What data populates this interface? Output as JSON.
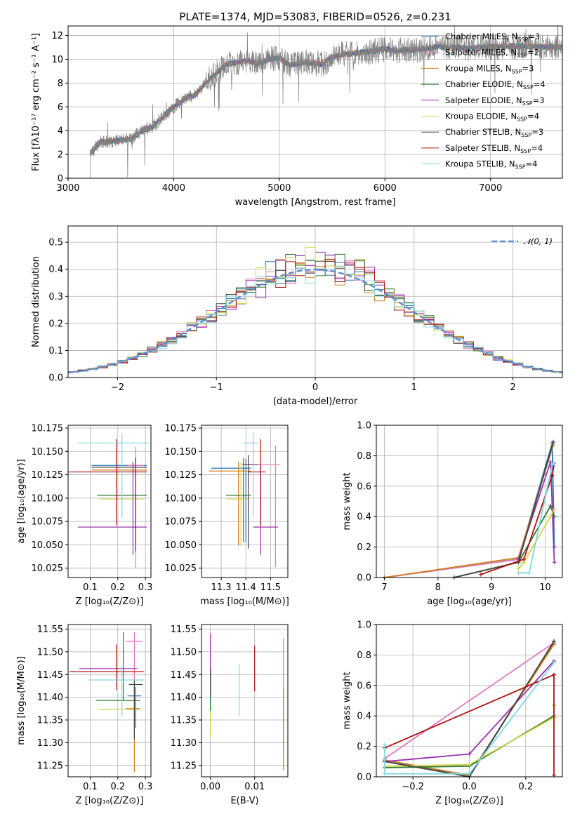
{
  "figure": {
    "title": "PLATE=1374, MJD=53083, FIBERID=0526, z=0.231"
  },
  "chart_data": [
    {
      "id": "spectrum",
      "type": "line",
      "xlabel": "wavelength [Angstrom, rest frame]",
      "ylabel": "Flux [fλ10⁻¹⁷ erg cm⁻² s⁻¹ A⁻¹]",
      "xlim": [
        3000,
        7680
      ],
      "ylim": [
        0,
        12.8
      ],
      "xticks": [
        3000,
        4000,
        5000,
        6000,
        7000
      ],
      "yticks": [
        0,
        2,
        4,
        6,
        8,
        10,
        12
      ],
      "x_start": 3210,
      "x_end": 7680,
      "data_color": "#808080",
      "continuum": [
        [
          3210,
          2.1
        ],
        [
          3300,
          3.0
        ],
        [
          3400,
          3.1
        ],
        [
          3500,
          3.2
        ],
        [
          3600,
          3.3
        ],
        [
          3700,
          4.0
        ],
        [
          3800,
          4.3
        ],
        [
          3900,
          5.2
        ],
        [
          4000,
          6.0
        ],
        [
          4100,
          6.7
        ],
        [
          4200,
          7.0
        ],
        [
          4300,
          8.0
        ],
        [
          4400,
          8.8
        ],
        [
          4500,
          9.6
        ],
        [
          4600,
          9.7
        ],
        [
          4700,
          9.9
        ],
        [
          4800,
          9.6
        ],
        [
          4900,
          10.0
        ],
        [
          5000,
          10.1
        ],
        [
          5100,
          9.5
        ],
        [
          5200,
          9.7
        ],
        [
          5300,
          9.7
        ],
        [
          5400,
          9.6
        ],
        [
          5500,
          10.2
        ],
        [
          5600,
          10.4
        ],
        [
          5700,
          10.5
        ],
        [
          5800,
          10.6
        ],
        [
          5900,
          10.7
        ],
        [
          6000,
          10.9
        ],
        [
          6100,
          10.7
        ],
        [
          6200,
          10.8
        ],
        [
          6300,
          10.8
        ],
        [
          6400,
          10.9
        ],
        [
          6500,
          11.1
        ],
        [
          6600,
          11.0
        ],
        [
          6700,
          11.0
        ],
        [
          6800,
          10.9
        ],
        [
          6900,
          11.0
        ],
        [
          7000,
          11.0
        ],
        [
          7200,
          11.1
        ],
        [
          7400,
          11.1
        ],
        [
          7680,
          11.0
        ]
      ],
      "legend": [
        {
          "label": "Chabrier MILES, N",
          "sub": "SSP",
          "post": "=3",
          "color": "#1f77b4"
        },
        {
          "label": "Salpeter MILES, N",
          "sub": "SSP",
          "post": "=2",
          "color": "#e377c2"
        },
        {
          "label": "Kroupa MILES, N",
          "sub": "SSP",
          "post": "=3",
          "color": "#d08020"
        },
        {
          "label": "Chabrier ELODIE, N",
          "sub": "SSP",
          "post": "=4",
          "color": "#2c7a2c"
        },
        {
          "label": "Salpeter ELODIE, N",
          "sub": "SSP",
          "post": "=3",
          "color": "#9b30b0"
        },
        {
          "label": "Kroupa ELODIE, N",
          "sub": "SSP",
          "post": "=4",
          "color": "#d4d44a"
        },
        {
          "label": "Chabrier STELIB, N",
          "sub": "SSP",
          "post": "=3",
          "color": "#444444"
        },
        {
          "label": "Salpeter STELIB, N",
          "sub": "SSP",
          "post": "=4",
          "color": "#b01010"
        },
        {
          "label": "Kroupa STELIB, N",
          "sub": "SSP",
          "post": "=4",
          "color": "#80d8e0"
        }
      ]
    },
    {
      "id": "residuals",
      "type": "step",
      "xlabel": "(data-model)/error",
      "ylabel": "Normed distribution",
      "xlim": [
        -2.5,
        2.5
      ],
      "ylim": [
        0,
        0.56
      ],
      "xticks": [
        -2,
        -1,
        0,
        1,
        2
      ],
      "yticks": [
        0.0,
        0.1,
        0.2,
        0.3,
        0.4,
        0.5
      ],
      "bin_width": 0.1,
      "series_colors": [
        "#1f77b4",
        "#e377c2",
        "#d08020",
        "#2c7a2c",
        "#9b30b0",
        "#d4d44a",
        "#444444",
        "#b01010",
        "#80d8e0"
      ],
      "legend": {
        "label": "𝒩(0, 1)",
        "color": "#5b8dd6"
      }
    },
    {
      "id": "age_vs_Z",
      "type": "errorbar",
      "xlabel": "Z [log₁₀(Z/Z⊙)]",
      "ylabel": "age  [log₁₀(age/yr)]",
      "xlim": [
        0.02,
        0.32
      ],
      "ylim": [
        10.015,
        10.178
      ],
      "xticks": [
        0.1,
        0.2,
        0.3
      ],
      "yticks": [
        10.025,
        10.05,
        10.075,
        10.1,
        10.125,
        10.15,
        10.175
      ],
      "points": [
        {
          "x": 0.265,
          "y": 10.135,
          "xerr": [
            0.16,
            0.04
          ],
          "yerr": [
            0.09,
            0.01
          ],
          "color": "#1f77b4"
        },
        {
          "x": 0.265,
          "y": 10.135,
          "xerr": [
            0.03,
            0.03
          ],
          "yerr": [
            0.11,
            0.02
          ],
          "color": "#e377c2"
        },
        {
          "x": 0.265,
          "y": 10.13,
          "xerr": [
            0.16,
            0.04
          ],
          "yerr": [
            0.08,
            0.01
          ],
          "color": "#d08020"
        },
        {
          "x": 0.265,
          "y": 10.103,
          "xerr": [
            0.14,
            0.04
          ],
          "yerr": [
            0.05,
            0.04
          ],
          "color": "#2c7a2c"
        },
        {
          "x": 0.255,
          "y": 10.069,
          "xerr": [
            0.2,
            0.05
          ],
          "yerr": [
            0.03,
            0.07
          ],
          "color": "#9b30b0"
        },
        {
          "x": 0.265,
          "y": 10.099,
          "xerr": [
            0.13,
            0.03
          ],
          "yerr": [
            0.05,
            0.04
          ],
          "color": "#d4d44a"
        },
        {
          "x": 0.265,
          "y": 10.133,
          "xerr": [
            0.16,
            0.04
          ],
          "yerr": [
            0.09,
            0.01
          ],
          "color": "#444444"
        },
        {
          "x": 0.195,
          "y": 10.128,
          "xerr": [
            0.18,
            0.11
          ],
          "yerr": [
            0.057,
            0.035
          ],
          "color": "#b01010"
        },
        {
          "x": 0.215,
          "y": 10.159,
          "xerr": [
            0.16,
            0.1
          ],
          "yerr": [
            0.08,
            0.01
          ],
          "color": "#80d8e0"
        }
      ]
    },
    {
      "id": "age_vs_mass",
      "type": "errorbar",
      "xlabel": "mass [log₁₀(M/M⊙)]",
      "ylabel": "",
      "xlim": [
        11.22,
        11.57
      ],
      "ylim": [
        10.015,
        10.178
      ],
      "xticks": [
        11.3,
        11.4,
        11.5
      ],
      "yticks": [
        10.025,
        10.05,
        10.075,
        10.1,
        10.125,
        10.15,
        10.175
      ],
      "points": [
        {
          "x": 11.4,
          "y": 10.132,
          "xerr": [
            0.14,
            0.02
          ],
          "yerr": [
            0.08,
            0.01
          ],
          "color": "#1f77b4"
        },
        {
          "x": 11.52,
          "y": 10.136,
          "xerr": [
            0.14,
            0.02
          ],
          "yerr": [
            0.11,
            0.02
          ],
          "color": "#e377c2"
        },
        {
          "x": 11.37,
          "y": 10.129,
          "xerr": [
            0.12,
            0.05
          ],
          "yerr": [
            0.08,
            0.01
          ],
          "color": "#d08020"
        },
        {
          "x": 11.39,
          "y": 10.103,
          "xerr": [
            0.07,
            0.03
          ],
          "yerr": [
            0.05,
            0.04
          ],
          "color": "#2c7a2c"
        },
        {
          "x": 11.46,
          "y": 10.069,
          "xerr": [
            0.03,
            0.07
          ],
          "yerr": [
            0.03,
            0.07
          ],
          "color": "#9b30b0"
        },
        {
          "x": 11.38,
          "y": 10.099,
          "xerr": [
            0.06,
            0.03
          ],
          "yerr": [
            0.05,
            0.04
          ],
          "color": "#d4d44a"
        },
        {
          "x": 11.41,
          "y": 10.136,
          "xerr": [
            0.02,
            0.04
          ],
          "yerr": [
            0.09,
            0.01
          ],
          "color": "#444444"
        },
        {
          "x": 11.46,
          "y": 10.128,
          "xerr": [
            0.05,
            0.02
          ],
          "yerr": [
            0.057,
            0.035
          ],
          "color": "#b01010"
        },
        {
          "x": 11.43,
          "y": 10.159,
          "xerr": [
            0.04,
            0.02
          ],
          "yerr": [
            0.08,
            0.01
          ],
          "color": "#80d8e0"
        }
      ]
    },
    {
      "id": "weight_vs_age",
      "type": "line",
      "xlabel": "age  [log₁₀(age/yr)]",
      "ylabel": "mass weight",
      "xlim": [
        6.85,
        10.32
      ],
      "ylim": [
        0,
        1.0
      ],
      "xticks": [
        7,
        8,
        9,
        10
      ],
      "yticks": [
        0.0,
        0.2,
        0.4,
        0.6,
        0.8,
        1.0
      ],
      "series": [
        {
          "color": "#1f77b4",
          "x": [
            7.0,
            9.5,
            10.13,
            10.17
          ],
          "y": [
            0.0,
            0.12,
            0.88,
            0.2
          ]
        },
        {
          "color": "#e377c2",
          "x": [
            7.0,
            9.5,
            10.15
          ],
          "y": [
            0.0,
            0.12,
            0.88
          ]
        },
        {
          "color": "#d08020",
          "x": [
            7.0,
            9.5,
            10.15
          ],
          "y": [
            0.0,
            0.13,
            0.87
          ]
        },
        {
          "color": "#2c7a2c",
          "x": [
            8.3,
            9.5,
            10.1,
            10.17
          ],
          "y": [
            0.0,
            0.1,
            0.47,
            0.4
          ]
        },
        {
          "color": "#9b30b0",
          "x": [
            9.5,
            10.1,
            10.17
          ],
          "y": [
            0.12,
            0.76,
            0.1
          ]
        },
        {
          "color": "#d4d44a",
          "x": [
            9.5,
            9.6,
            10.1,
            10.17
          ],
          "y": [
            0.06,
            0.1,
            0.4,
            0.45
          ]
        },
        {
          "color": "#444444",
          "x": [
            8.3,
            9.5,
            10.15
          ],
          "y": [
            0.0,
            0.1,
            0.89
          ]
        },
        {
          "color": "#b01010",
          "x": [
            8.8,
            9.6,
            10.13,
            10.17
          ],
          "y": [
            0.02,
            0.12,
            0.67,
            0.75
          ]
        },
        {
          "color": "#80d8e0",
          "x": [
            9.5,
            9.7,
            10.13,
            10.17
          ],
          "y": [
            0.03,
            0.03,
            0.74,
            0.75
          ]
        }
      ]
    },
    {
      "id": "mass_vs_Z",
      "type": "errorbar",
      "xlabel": "Z [log₁₀(Z/Z⊙)]",
      "ylabel": "mass [log₁₀(M/M⊙)]",
      "xlim": [
        0.02,
        0.32
      ],
      "ylim": [
        11.225,
        11.56
      ],
      "xticks": [
        0.1,
        0.2,
        0.3
      ],
      "yticks": [
        11.25,
        11.3,
        11.35,
        11.4,
        11.45,
        11.5,
        11.55
      ],
      "points": [
        {
          "x": 0.265,
          "y": 11.403,
          "xerr": [
            0.03,
            0.02
          ],
          "yerr": [
            0.07,
            0.02
          ],
          "color": "#1f77b4"
        },
        {
          "x": 0.26,
          "y": 11.523,
          "xerr": [
            0.03,
            0.03
          ],
          "yerr": [
            0.14,
            0.02
          ],
          "color": "#e377c2"
        },
        {
          "x": 0.26,
          "y": 11.375,
          "xerr": [
            0.03,
            0.02
          ],
          "yerr": [
            0.14,
            0.03
          ],
          "color": "#d08020"
        },
        {
          "x": 0.26,
          "y": 11.393,
          "xerr": [
            0.14,
            0.02
          ],
          "yerr": [
            0.07,
            0.03
          ],
          "color": "#2c7a2c"
        },
        {
          "x": 0.22,
          "y": 11.463,
          "xerr": [
            0.16,
            0.05
          ],
          "yerr": [
            0.07,
            0.08
          ],
          "color": "#9b30b0"
        },
        {
          "x": 0.26,
          "y": 11.373,
          "xerr": [
            0.13,
            0.02
          ],
          "yerr": [
            0.06,
            0.03
          ],
          "color": "#d4d44a"
        },
        {
          "x": 0.26,
          "y": 11.428,
          "xerr": [
            0.02,
            0.03
          ],
          "yerr": [
            0.12,
            0.01
          ],
          "color": "#444444"
        },
        {
          "x": 0.195,
          "y": 11.456,
          "xerr": [
            0.17,
            0.1
          ],
          "yerr": [
            0.04,
            0.06
          ],
          "color": "#b01010"
        },
        {
          "x": 0.215,
          "y": 11.438,
          "xerr": [
            0.12,
            0.08
          ],
          "yerr": [
            0.08,
            0.03
          ],
          "color": "#80d8e0"
        }
      ]
    },
    {
      "id": "mass_vs_EBV",
      "type": "errorbar",
      "xlabel": "E(B-V)",
      "ylabel": "",
      "xlim": [
        -0.002,
        0.0175
      ],
      "ylim": [
        11.225,
        11.56
      ],
      "xticks": [
        0.0,
        0.01
      ],
      "yticks": [
        11.25,
        11.3,
        11.35,
        11.4,
        11.45,
        11.5,
        11.55
      ],
      "points": [
        {
          "x": 0.0,
          "y": 11.4,
          "xerr": [
            0,
            0
          ],
          "yerr": [
            0.06,
            0.06
          ],
          "color": "#1f77b4"
        },
        {
          "x": 0.0165,
          "y": 11.4,
          "xerr": [
            0,
            0
          ],
          "yerr": [
            0.13,
            0.13
          ],
          "color": "#e377c2"
        },
        {
          "x": 0.0165,
          "y": 11.33,
          "xerr": [
            0,
            0
          ],
          "yerr": [
            0.09,
            0.09
          ],
          "color": "#d08020"
        },
        {
          "x": 0.0,
          "y": 11.42,
          "xerr": [
            0,
            0
          ],
          "yerr": [
            0.05,
            0.05
          ],
          "color": "#2c7a2c"
        },
        {
          "x": 0.0,
          "y": 11.47,
          "xerr": [
            0,
            0
          ],
          "yerr": [
            0.07,
            0.07
          ],
          "color": "#9b30b0"
        },
        {
          "x": 0.0,
          "y": 11.34,
          "xerr": [
            0,
            0
          ],
          "yerr": [
            0.03,
            0.03
          ],
          "color": "#d4d44a"
        },
        {
          "x": 0.0,
          "y": 11.43,
          "xerr": [
            0,
            0
          ],
          "yerr": [
            0.03,
            0.03
          ],
          "color": "#444444"
        },
        {
          "x": 0.01,
          "y": 11.463,
          "xerr": [
            0,
            0
          ],
          "yerr": [
            0.05,
            0.05
          ],
          "color": "#b01010"
        },
        {
          "x": 0.0065,
          "y": 11.415,
          "xerr": [
            0,
            0
          ],
          "yerr": [
            0.057,
            0.057
          ],
          "color": "#80d8e0"
        }
      ]
    },
    {
      "id": "weight_vs_Z",
      "type": "line",
      "xlabel": "Z [log₁₀(Z/Z⊙)]",
      "ylabel": "mass weight",
      "xlim": [
        -0.33,
        0.33
      ],
      "ylim": [
        0,
        1.0
      ],
      "xticks": [
        -0.2,
        0.0,
        0.2
      ],
      "yticks": [
        0.0,
        0.2,
        0.4,
        0.6,
        0.8,
        1.0
      ],
      "series": [
        {
          "color": "#1f77b4",
          "x": [
            -0.3,
            0.0,
            0.3
          ],
          "y": [
            0.11,
            0.0,
            0.88
          ]
        },
        {
          "color": "#e377c2",
          "x": [
            -0.3,
            0.3
          ],
          "y": [
            0.12,
            0.88
          ]
        },
        {
          "color": "#d08020",
          "x": [
            -0.3,
            0.0,
            0.3
          ],
          "y": [
            0.11,
            0.01,
            0.87
          ]
        },
        {
          "color": "#2c7a2c",
          "x": [
            -0.3,
            0.0,
            0.3,
            0.3
          ],
          "y": [
            0.06,
            0.07,
            0.4,
            0.47
          ]
        },
        {
          "color": "#9b30b0",
          "x": [
            -0.3,
            0.0,
            0.3
          ],
          "y": [
            0.1,
            0.15,
            0.76
          ]
        },
        {
          "color": "#d4d44a",
          "x": [
            -0.3,
            0.0,
            0.3,
            0.3
          ],
          "y": [
            0.07,
            0.08,
            0.39,
            0.47
          ]
        },
        {
          "color": "#444444",
          "x": [
            -0.3,
            0.0,
            0.3
          ],
          "y": [
            0.1,
            0.0,
            0.89
          ]
        },
        {
          "color": "#b01010",
          "x": [
            -0.3,
            0.3,
            0.3
          ],
          "y": [
            0.19,
            0.67,
            0.01
          ]
        },
        {
          "color": "#80d8e0",
          "x": [
            -0.3,
            -0.3,
            0.0,
            0.3
          ],
          "y": [
            0.21,
            0.02,
            0.02,
            0.75
          ]
        }
      ]
    }
  ]
}
